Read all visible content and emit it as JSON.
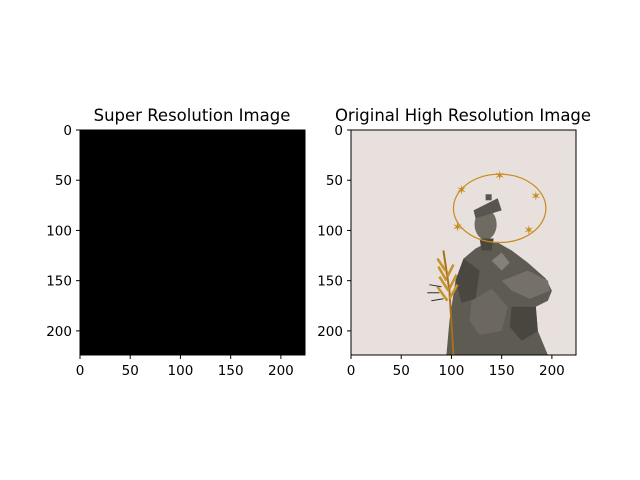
{
  "figure": {
    "layout": "1x2 subplots"
  },
  "chart_data": [
    {
      "type": "image",
      "title": "Super Resolution Image",
      "xlim": [
        0,
        224
      ],
      "ylim": [
        224,
        0
      ],
      "xticks": [
        0,
        50,
        100,
        150,
        200
      ],
      "yticks": [
        0,
        50,
        100,
        150,
        200
      ],
      "xtick_labels": [
        "0",
        "50",
        "100",
        "150",
        "200"
      ],
      "ytick_labels": [
        "0",
        "50",
        "100",
        "150",
        "200"
      ],
      "content": "solid black image",
      "fill_color": "#000000"
    },
    {
      "type": "image",
      "title": "Original High Resolution Image",
      "xlim": [
        0,
        224
      ],
      "ylim": [
        224,
        0
      ],
      "xticks": [
        0,
        50,
        100,
        150,
        200
      ],
      "yticks": [
        0,
        50,
        100,
        150,
        200
      ],
      "xtick_labels": [
        "0",
        "50",
        "100",
        "150",
        "200"
      ],
      "ytick_labels": [
        "0",
        "50",
        "100",
        "150",
        "200"
      ],
      "content": "statue of a saint with a golden halo of stars holding a golden palm branch, on a pale beige sky",
      "background_color": "#e7e0dc",
      "halo_color": "#c98a1c",
      "statue_color": "#5e5b52"
    }
  ]
}
